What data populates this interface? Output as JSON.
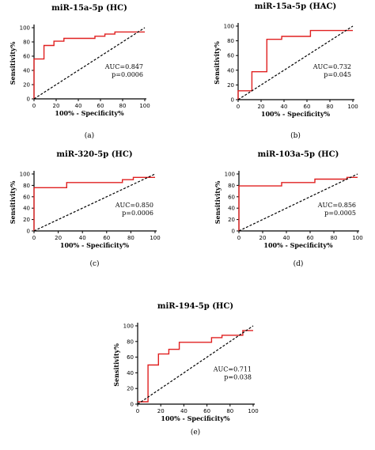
{
  "chart_data": [
    {
      "type": "line",
      "caption": "(a)",
      "title": "miR-15a-5p (HC)",
      "xlabel": "100% - Specificity%",
      "ylabel": "Sensitivity%",
      "xlim": [
        0,
        100
      ],
      "ylim": [
        0,
        100
      ],
      "xticks": [
        "0",
        "20",
        "40",
        "60",
        "80",
        "100"
      ],
      "yticks": [
        "0",
        "20",
        "40",
        "60",
        "80",
        "100"
      ],
      "auc_label": "AUC=0.847",
      "p_label": "p=0.0006",
      "series": [
        {
          "kind": "roc",
          "color": "#e02020",
          "x": [
            0,
            0,
            9,
            9,
            18,
            18,
            27,
            27,
            55,
            55,
            64,
            64,
            73,
            73,
            100
          ],
          "y": [
            0,
            56,
            56,
            75,
            75,
            81,
            81,
            85,
            85,
            88,
            88,
            91,
            91,
            94,
            94
          ]
        },
        {
          "kind": "reference",
          "color": "#000000",
          "x": [
            0,
            100
          ],
          "y": [
            0,
            100
          ]
        }
      ]
    },
    {
      "type": "line",
      "caption": "(b)",
      "title": "miR-15a-5p (HAC)",
      "xlabel": "100% - Specificity%",
      "ylabel": "Sensitivity%",
      "xlim": [
        0,
        100
      ],
      "ylim": [
        0,
        100
      ],
      "xticks": [
        "0",
        "20",
        "40",
        "60",
        "80",
        "100"
      ],
      "yticks": [
        "0",
        "20",
        "40",
        "60",
        "80",
        "100"
      ],
      "auc_label": "AUC=0.732",
      "p_label": "p=0.045",
      "series": [
        {
          "kind": "roc",
          "color": "#e02020",
          "x": [
            0,
            0,
            12,
            12,
            25,
            25,
            38,
            38,
            63,
            63,
            100
          ],
          "y": [
            0,
            12,
            12,
            38,
            38,
            82,
            82,
            86,
            86,
            94,
            94
          ]
        },
        {
          "kind": "reference",
          "color": "#000000",
          "x": [
            0,
            100
          ],
          "y": [
            0,
            100
          ]
        }
      ]
    },
    {
      "type": "line",
      "caption": "(c)",
      "title": "miR-320-5p (HC)",
      "xlabel": "100% - Specificity%",
      "ylabel": "Sensitivity%",
      "xlim": [
        0,
        100
      ],
      "ylim": [
        0,
        100
      ],
      "xticks": [
        "0",
        "20",
        "40",
        "60",
        "80",
        "100"
      ],
      "yticks": [
        "0",
        "20",
        "40",
        "60",
        "80",
        "100"
      ],
      "auc_label": "AUC=0.850",
      "p_label": "p=0.0006",
      "series": [
        {
          "kind": "roc",
          "color": "#e02020",
          "x": [
            0,
            0,
            27,
            27,
            73,
            73,
            82,
            82,
            100
          ],
          "y": [
            0,
            76,
            76,
            85,
            85,
            90,
            90,
            94,
            94
          ]
        },
        {
          "kind": "reference",
          "color": "#000000",
          "x": [
            0,
            100
          ],
          "y": [
            0,
            100
          ]
        }
      ]
    },
    {
      "type": "line",
      "caption": "(d)",
      "title": "miR-103a-5p (HC)",
      "xlabel": "100% - Specificity%",
      "ylabel": "Sensitivity%",
      "xlim": [
        0,
        100
      ],
      "ylim": [
        0,
        100
      ],
      "xticks": [
        "0",
        "20",
        "40",
        "60",
        "80",
        "100"
      ],
      "yticks": [
        "0",
        "20",
        "40",
        "60",
        "80",
        "100"
      ],
      "auc_label": "AUC=0.856",
      "p_label": "p=0.0005",
      "series": [
        {
          "kind": "roc",
          "color": "#e02020",
          "x": [
            0,
            0,
            36,
            36,
            64,
            64,
            91,
            91,
            100
          ],
          "y": [
            0,
            79,
            79,
            85,
            85,
            91,
            91,
            94,
            94
          ]
        },
        {
          "kind": "reference",
          "color": "#000000",
          "x": [
            0,
            100
          ],
          "y": [
            0,
            100
          ]
        }
      ]
    },
    {
      "type": "line",
      "caption": "(e)",
      "title": "miR-194-5p (HC)",
      "xlabel": "100% - Specificity%",
      "ylabel": "Sensitivity%",
      "xlim": [
        0,
        100
      ],
      "ylim": [
        0,
        100
      ],
      "xticks": [
        "0",
        "20",
        "40",
        "60",
        "80",
        "100"
      ],
      "yticks": [
        "0",
        "20",
        "40",
        "60",
        "80",
        "100"
      ],
      "auc_label": "AUC=0.711",
      "p_label": "p=0.038",
      "series": [
        {
          "kind": "roc",
          "color": "#e02020",
          "x": [
            0,
            9,
            9,
            18,
            18,
            27,
            27,
            36,
            36,
            64,
            64,
            73,
            73,
            91,
            91,
            100
          ],
          "y": [
            3,
            3,
            50,
            50,
            64,
            64,
            70,
            70,
            79,
            79,
            85,
            85,
            88,
            88,
            94,
            94
          ]
        },
        {
          "kind": "reference",
          "color": "#000000",
          "x": [
            0,
            100
          ],
          "y": [
            0,
            100
          ]
        }
      ]
    }
  ]
}
